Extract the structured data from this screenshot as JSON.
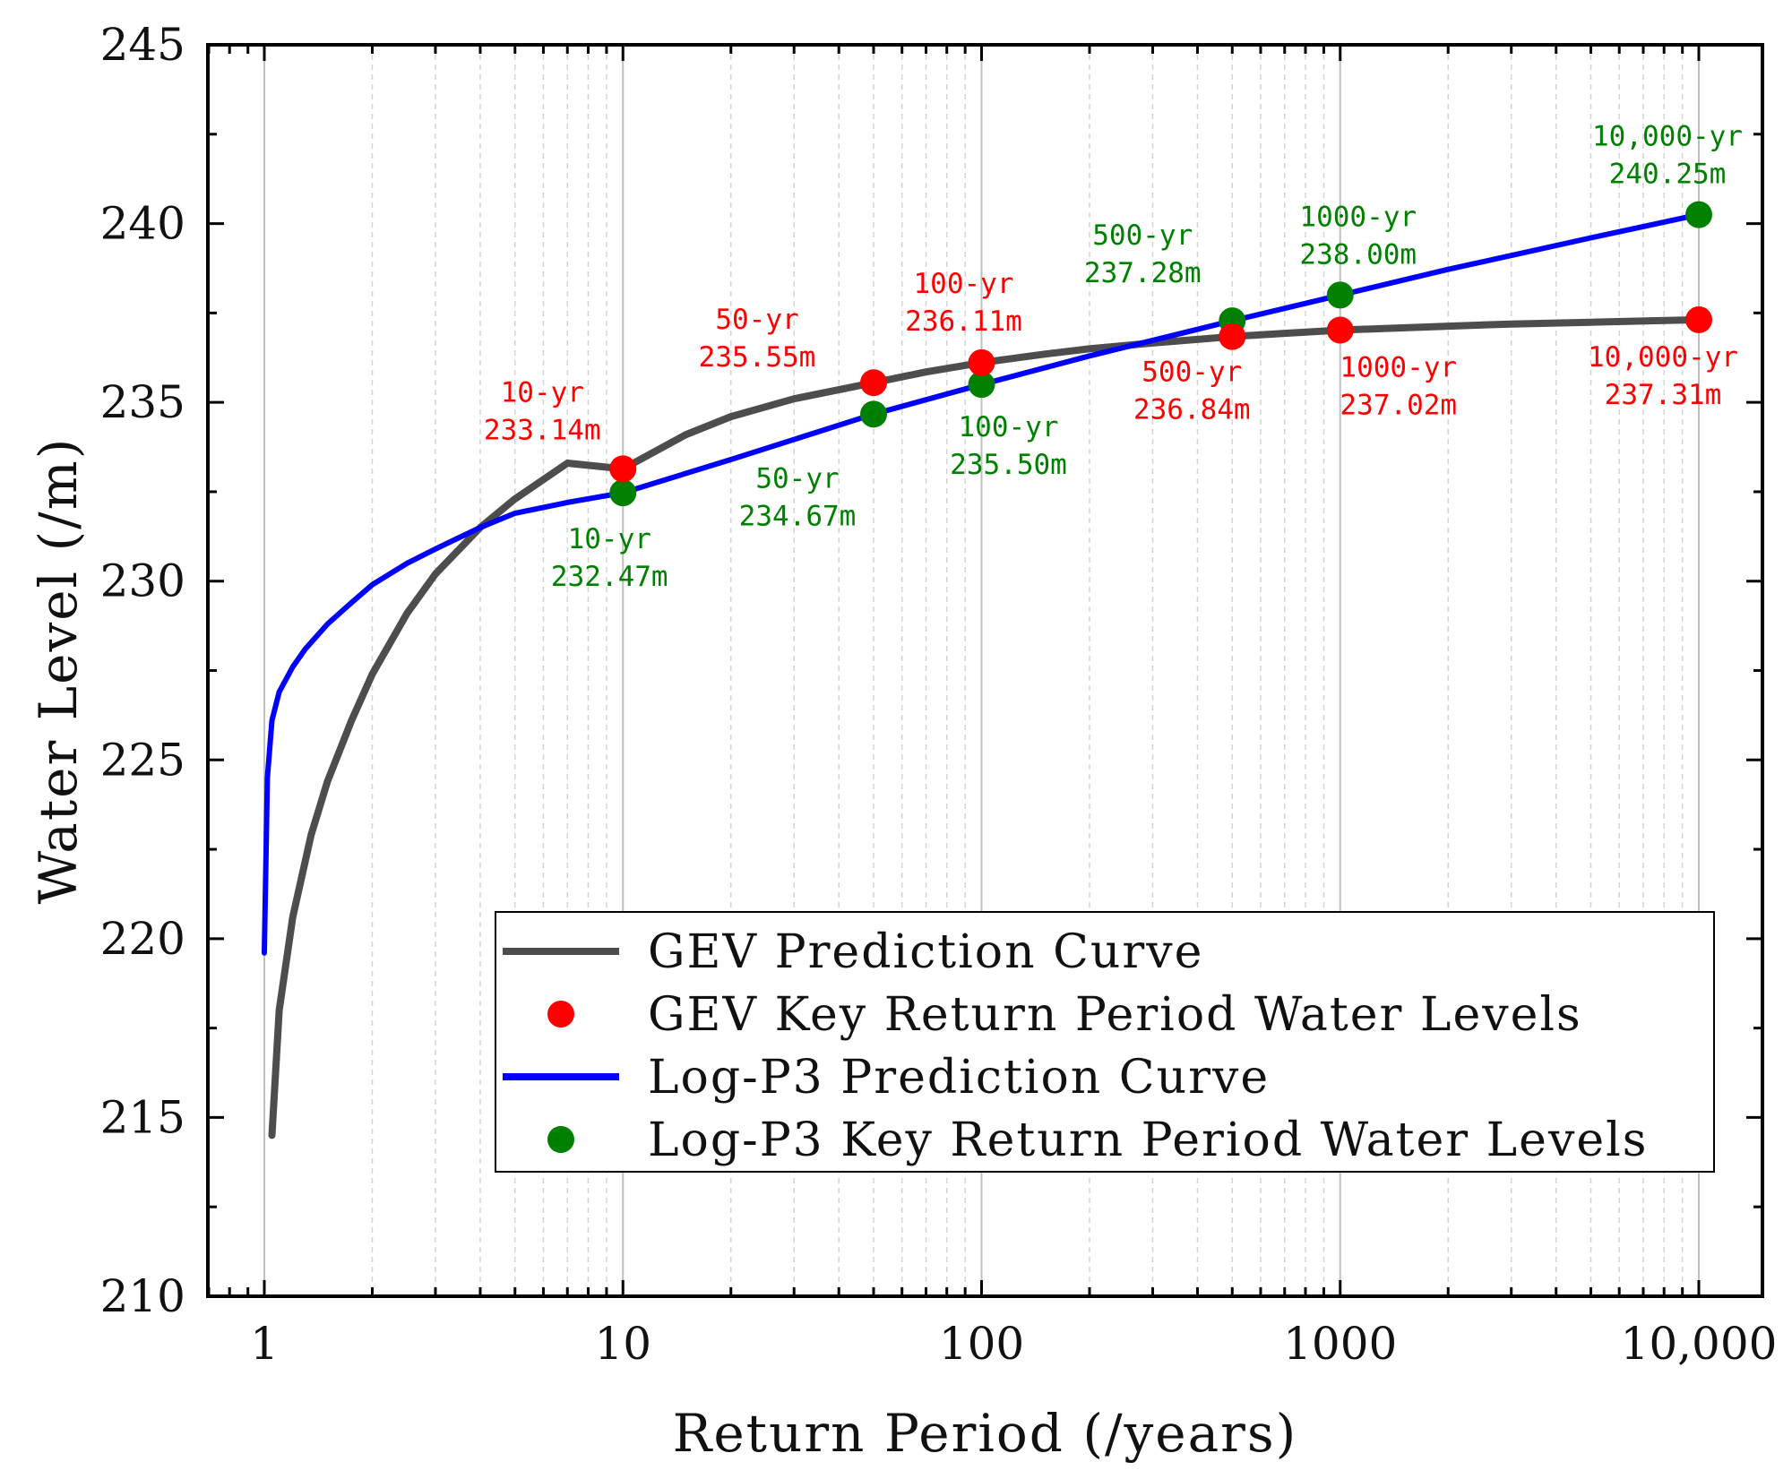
{
  "chart_data": {
    "type": "line",
    "xscale": "log",
    "xlabel": "Return Period (/years)",
    "ylabel": "Water Level (/m)",
    "xlim": [
      1,
      10000
    ],
    "ylim": [
      210,
      245
    ],
    "xticks": [
      {
        "value": 1,
        "label": "1"
      },
      {
        "value": 10,
        "label": "10"
      },
      {
        "value": 100,
        "label": "100"
      },
      {
        "value": 1000,
        "label": "1000"
      },
      {
        "value": 10000,
        "label": "10,000"
      }
    ],
    "yticks": [
      {
        "value": 210,
        "label": "210"
      },
      {
        "value": 215,
        "label": "215"
      },
      {
        "value": 220,
        "label": "220"
      },
      {
        "value": 225,
        "label": "225"
      },
      {
        "value": 230,
        "label": "230"
      },
      {
        "value": 235,
        "label": "235"
      },
      {
        "value": 240,
        "label": "240"
      },
      {
        "value": 245,
        "label": "245"
      }
    ],
    "colors": {
      "gev_curve": "#4d4d4d",
      "gev_points": "#ff0000",
      "lp3_curve": "#0000ff",
      "lp3_points": "#008000",
      "grid": "#bfbfbf"
    },
    "legend": {
      "position": "bottom-right",
      "entries": [
        {
          "label": "GEV Prediction Curve",
          "kind": "line",
          "color": "#4d4d4d"
        },
        {
          "label": "GEV Key Return Period Water Levels",
          "kind": "marker",
          "color": "#ff0000"
        },
        {
          "label": "Log-P3 Prediction Curve",
          "kind": "line",
          "color": "#0000ff"
        },
        {
          "label": "Log-P3 Key Return Period Water Levels",
          "kind": "marker",
          "color": "#008000"
        }
      ]
    },
    "series": [
      {
        "name": "GEV Prediction Curve",
        "kind": "line",
        "x": [
          1.05,
          1.1,
          1.2,
          1.35,
          1.5,
          1.75,
          2,
          2.5,
          3,
          4,
          5,
          7,
          10,
          15,
          20,
          30,
          50,
          70,
          100,
          150,
          200,
          300,
          500,
          700,
          1000,
          2000,
          3000,
          5000,
          10000
        ],
        "y": [
          214.5,
          218.0,
          220.6,
          222.9,
          224.4,
          226.1,
          227.4,
          229.1,
          230.2,
          231.5,
          232.3,
          233.3,
          233.14,
          234.1,
          234.6,
          235.1,
          235.55,
          235.85,
          236.11,
          236.35,
          236.5,
          236.66,
          236.84,
          236.93,
          237.02,
          237.13,
          237.19,
          237.24,
          237.31
        ]
      },
      {
        "name": "GEV Key Return Period Water Levels",
        "kind": "points",
        "points": [
          {
            "x": 10,
            "y": 233.14,
            "label": [
              "10-yr",
              "233.14m"
            ]
          },
          {
            "x": 50,
            "y": 235.55,
            "label": [
              "50-yr",
              "235.55m"
            ]
          },
          {
            "x": 100,
            "y": 236.11,
            "label": [
              "100-yr",
              "236.11m"
            ]
          },
          {
            "x": 500,
            "y": 236.84,
            "label": [
              "500-yr",
              "236.84m"
            ]
          },
          {
            "x": 1000,
            "y": 237.02,
            "label": [
              "1000-yr",
              "237.02m"
            ]
          },
          {
            "x": 10000,
            "y": 237.31,
            "label": [
              "10,000-yr",
              "237.31m"
            ]
          }
        ]
      },
      {
        "name": "Log-P3 Prediction Curve",
        "kind": "line",
        "x": [
          1,
          1.02,
          1.05,
          1.1,
          1.2,
          1.3,
          1.5,
          1.75,
          2,
          2.5,
          3,
          4,
          5,
          7,
          10,
          20,
          50,
          100,
          200,
          500,
          1000,
          2000,
          5000,
          10000
        ],
        "y": [
          219.6,
          224.5,
          226.1,
          226.9,
          227.6,
          228.1,
          228.8,
          229.4,
          229.9,
          230.5,
          230.9,
          231.5,
          231.9,
          232.2,
          232.47,
          233.4,
          234.67,
          235.5,
          236.3,
          237.28,
          238.0,
          238.72,
          239.6,
          240.25
        ]
      },
      {
        "name": "Log-P3 Key Return Period Water Levels",
        "kind": "points",
        "points": [
          {
            "x": 10,
            "y": 232.47,
            "label": [
              "10-yr",
              "232.47m"
            ]
          },
          {
            "x": 50,
            "y": 234.67,
            "label": [
              "50-yr",
              "234.67m"
            ]
          },
          {
            "x": 100,
            "y": 235.5,
            "label": [
              "100-yr",
              "235.50m"
            ]
          },
          {
            "x": 500,
            "y": 237.28,
            "label": [
              "500-yr",
              "237.28m"
            ]
          },
          {
            "x": 1000,
            "y": 238.0,
            "label": [
              "1000-yr",
              "238.00m"
            ]
          },
          {
            "x": 10000,
            "y": 240.25,
            "label": [
              "10,000-yr",
              "240.25m"
            ]
          }
        ]
      }
    ]
  }
}
